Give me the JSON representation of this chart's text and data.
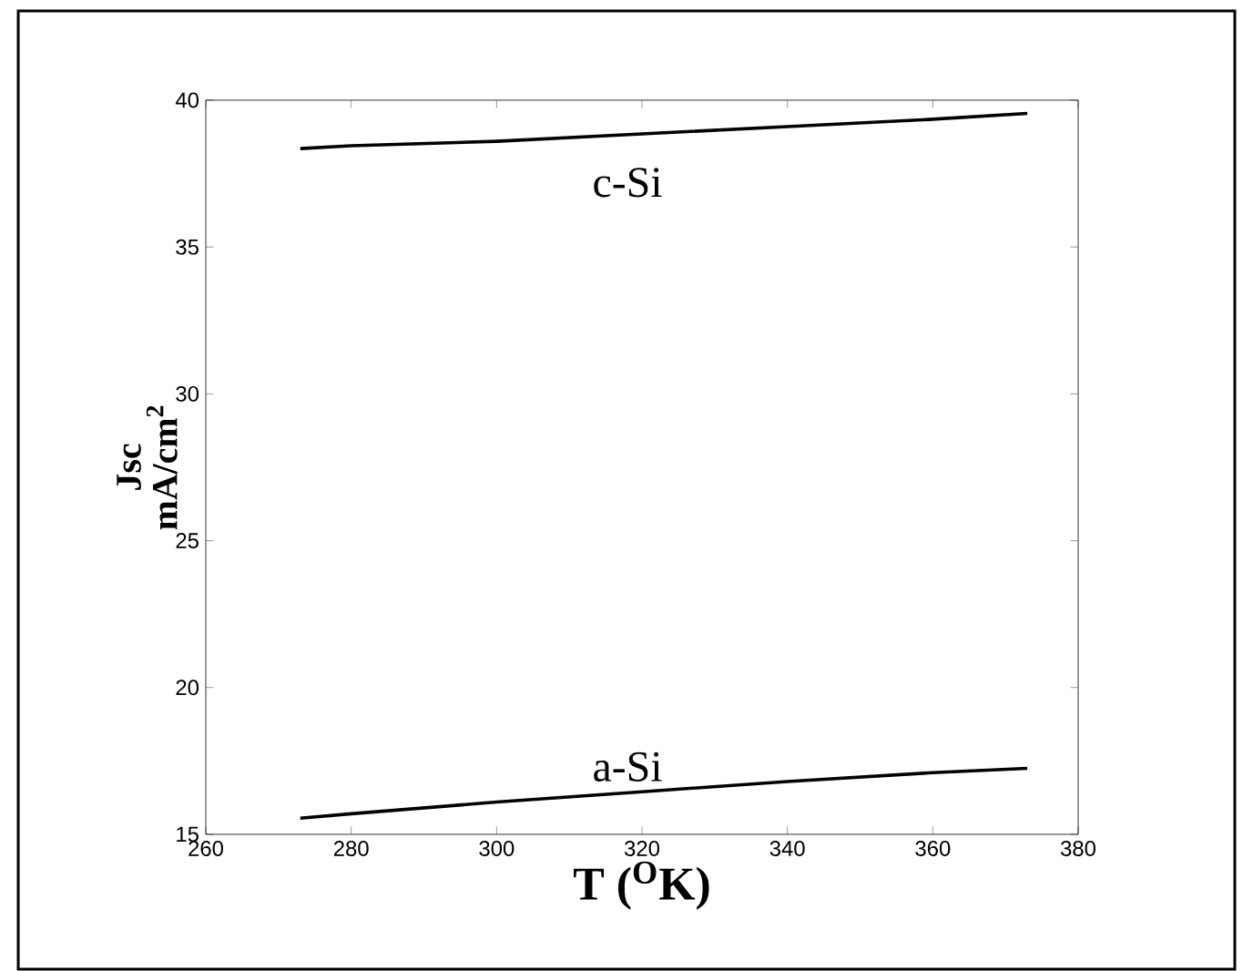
{
  "chart_data": {
    "type": "line",
    "xlabel": "T ($^{O}$K)",
    "ylabel": "Jsc mA/cm$^{2}$",
    "x": [
      273,
      280,
      300,
      320,
      340,
      360,
      373
    ],
    "series": [
      {
        "name": "c-Si",
        "color": "#000000",
        "values": [
          38.35,
          38.45,
          38.6,
          38.85,
          39.1,
          39.35,
          39.55
        ]
      },
      {
        "name": "a-Si",
        "color": "#000000",
        "values": [
          15.55,
          15.7,
          16.1,
          16.45,
          16.8,
          17.1,
          17.25
        ]
      }
    ],
    "xlim": [
      260,
      380
    ],
    "ylim": [
      15,
      40
    ],
    "xticks": [
      260,
      280,
      300,
      320,
      340,
      360,
      380
    ],
    "yticks": [
      15,
      20,
      25,
      30,
      35,
      40
    ],
    "grid": false,
    "legend": false,
    "marker": "none",
    "line_style": "solid"
  }
}
